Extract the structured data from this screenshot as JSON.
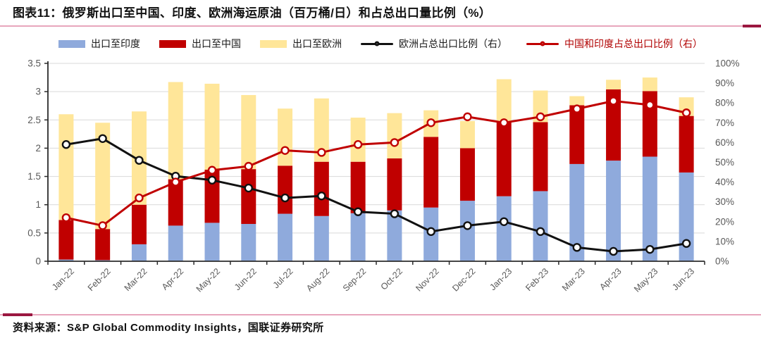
{
  "header": {
    "title": "图表11：俄罗斯出口至中国、印度、欧洲海运原油（百万桶/日）和占总出口量比例（%）"
  },
  "footer": {
    "source": "资料来源：S&P Global Commodity Insights，国联证券研究所"
  },
  "colors": {
    "rule_pink": "#E7A6BC",
    "rule_dark": "#9B1740",
    "grid": "#D9D9D9",
    "axis_line": "#2b2b2b",
    "tick_text": "#595959",
    "background": "#FFFFFF",
    "india_bar": "#8FAADC",
    "china_bar": "#C00000",
    "europe_bar": "#FFE699",
    "europe_line": "#111111",
    "chindia_line": "#C00000"
  },
  "chart_data": {
    "type": "bar",
    "subtype": "stacked-columns-with-two-lines",
    "title": "俄罗斯出口至中国、印度、欧洲海运原油（百万桶/日）和占总出口量比例（%）",
    "grid": true,
    "legend_position": "top",
    "categories": [
      "Jan-22",
      "Feb-22",
      "Mar-22",
      "Apr-22",
      "May-22",
      "Jun-22",
      "Jul-22",
      "Aug-22",
      "Sep-22",
      "Oct-22",
      "Nov-22",
      "Dec-22",
      "Jan-23",
      "Feb-23",
      "Mar-23",
      "Apr-23",
      "May-23",
      "Jun-23"
    ],
    "series": [
      {
        "name": "出口至印度",
        "type": "bar",
        "stack": "exports",
        "axis": "left",
        "color": "#8FAADC",
        "label_color": "#1A1A1A",
        "values": [
          0.03,
          0.02,
          0.3,
          0.63,
          0.68,
          0.66,
          0.84,
          0.8,
          0.85,
          0.9,
          0.95,
          1.07,
          1.15,
          1.24,
          1.72,
          1.78,
          1.85,
          1.57
        ]
      },
      {
        "name": "出口至中国",
        "type": "bar",
        "stack": "exports",
        "axis": "left",
        "color": "#C00000",
        "label_color": "#1A1A1A",
        "values": [
          0.7,
          0.55,
          0.7,
          0.82,
          0.94,
          0.97,
          0.85,
          0.96,
          0.91,
          0.92,
          1.25,
          0.93,
          1.32,
          1.22,
          1.04,
          1.26,
          1.16,
          1.0
        ]
      },
      {
        "name": "出口至欧洲",
        "type": "bar",
        "stack": "exports",
        "axis": "left",
        "color": "#FFE699",
        "label_color": "#1A1A1A",
        "values": [
          1.87,
          1.88,
          1.65,
          1.72,
          1.52,
          1.31,
          1.01,
          1.12,
          0.78,
          0.8,
          0.47,
          0.48,
          0.75,
          0.56,
          0.16,
          0.17,
          0.24,
          0.33
        ]
      },
      {
        "name": "欧洲占总出口比例（右）",
        "type": "line",
        "axis": "right",
        "color": "#111111",
        "label_color": "#1A1A1A",
        "values": [
          59,
          62,
          51,
          43,
          41,
          37,
          32,
          33,
          25,
          24,
          15,
          18,
          20,
          15,
          7,
          5,
          6,
          9
        ]
      },
      {
        "name": "中国和印度占总出口比例（右）",
        "type": "line",
        "axis": "right",
        "color": "#C00000",
        "label_color": "#B00000",
        "values": [
          22,
          18,
          32,
          40,
          46,
          48,
          56,
          55,
          59,
          60,
          70,
          73,
          70,
          73,
          77,
          81,
          79,
          75
        ]
      }
    ],
    "left_axis": {
      "min": 0,
      "max": 3.5,
      "step": 0.5,
      "ticks": [
        "0",
        "0.5",
        "1",
        "1.5",
        "2",
        "2.5",
        "3",
        "3.5"
      ]
    },
    "right_axis": {
      "min": 0,
      "max": 100,
      "step": 10,
      "ticks": [
        "0%",
        "10%",
        "20%",
        "30%",
        "40%",
        "50%",
        "60%",
        "70%",
        "80%",
        "90%",
        "100%"
      ]
    }
  }
}
